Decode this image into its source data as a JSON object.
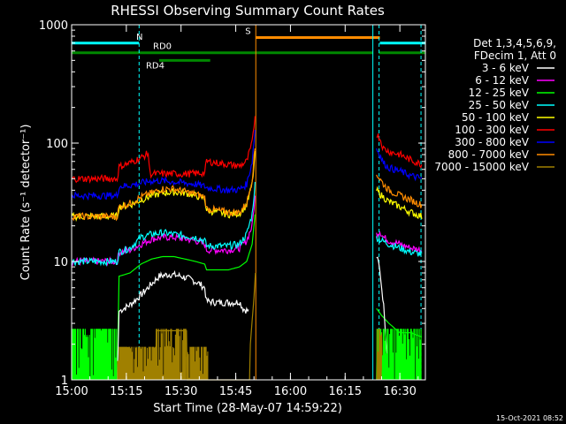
{
  "chart_data": {
    "type": "line",
    "title": "RHESSI Observing Summary Count Rates",
    "xlabel": "Start Time (28-May-07 14:59:22)",
    "ylabel": "Count Rate (s⁻¹ detector⁻¹)",
    "yscale": "log",
    "ylim": [
      1,
      1000
    ],
    "xlim_minutes": [
      0,
      97
    ],
    "x_ticks": [
      {
        "t": 0,
        "label": "15:00"
      },
      {
        "t": 15,
        "label": "15:15"
      },
      {
        "t": 30,
        "label": "15:30"
      },
      {
        "t": 45,
        "label": "15:45"
      },
      {
        "t": 60,
        "label": "16:00"
      },
      {
        "t": 75,
        "label": "16:15"
      },
      {
        "t": 90,
        "label": "16:30"
      }
    ],
    "y_ticks": [
      {
        "v": 1,
        "label": "1"
      },
      {
        "v": 10,
        "label": "10"
      },
      {
        "v": 100,
        "label": "100"
      },
      {
        "v": 1000,
        "label": "1000"
      }
    ],
    "legend_header": [
      "Det 1,3,4,5,6,9,",
      "FDecim 1, Att 0"
    ],
    "legend_position": "right",
    "timestamp": "15-Oct-2021 08:52",
    "flag_bars": [
      {
        "label": "N",
        "color": "#00ffff",
        "segments": [
          [
            0,
            18.5
          ],
          [
            84.5,
            97
          ]
        ],
        "level": 700
      },
      {
        "label": "S",
        "color": "#ff8c00",
        "segments": [
          [
            50.5,
            84.5
          ]
        ],
        "level": 780
      },
      {
        "label": "RD0",
        "color": "#008800",
        "segments": [
          [
            0,
            51
          ],
          [
            51,
            82.7
          ],
          [
            84.2,
            97
          ]
        ],
        "level": 580
      },
      {
        "label": "RD4",
        "color": "#008800",
        "segments": [
          [
            24,
            38
          ]
        ],
        "level": 500
      }
    ],
    "vlines": [
      {
        "t": 0,
        "color": "#00ffff",
        "style": "solid"
      },
      {
        "t": 18.5,
        "color": "#00ffff",
        "style": "dashed"
      },
      {
        "t": 82.6,
        "color": "#00ffff",
        "style": "solid"
      },
      {
        "t": 84.3,
        "color": "#00ffff",
        "style": "dashed"
      },
      {
        "t": 95.8,
        "color": "#00ffff",
        "style": "dashed"
      },
      {
        "t": 50.5,
        "color": "#ff8c00",
        "style": "solid"
      }
    ],
    "series": [
      {
        "name": "3 - 6 keV",
        "color": "#ffffff",
        "points": [
          [
            12.5,
            1.0
          ],
          [
            13,
            3.8
          ],
          [
            16,
            4.3
          ],
          [
            19,
            5.2
          ],
          [
            22,
            6.5
          ],
          [
            24,
            7.5
          ],
          [
            27,
            7.8
          ],
          [
            30,
            7.5
          ],
          [
            33,
            7.0
          ],
          [
            35,
            6.5
          ],
          [
            36.5,
            6.0
          ],
          [
            37,
            4.6
          ],
          [
            40,
            4.5
          ],
          [
            43,
            4.5
          ],
          [
            45,
            4.5
          ],
          [
            46,
            4.6
          ],
          [
            47,
            4.0
          ],
          [
            48.5,
            3.8
          ]
        ],
        "seg2": [
          [
            83.6,
            11
          ],
          [
            84.2,
            9.5
          ],
          [
            84.8,
            7
          ],
          [
            85.3,
            5
          ],
          [
            85.8,
            3.5
          ],
          [
            86.3,
            2
          ],
          [
            87,
            1.0
          ]
        ]
      },
      {
        "name": "6 - 12 keV",
        "color": "#ff00ff",
        "points": [
          [
            0,
            10
          ],
          [
            4,
            10
          ],
          [
            8,
            10
          ],
          [
            12.5,
            10
          ],
          [
            13,
            12
          ],
          [
            16,
            12.5
          ],
          [
            19,
            14
          ],
          [
            22,
            15.5
          ],
          [
            25,
            16
          ],
          [
            28,
            16
          ],
          [
            31,
            15.5
          ],
          [
            34,
            15
          ],
          [
            36.5,
            14
          ],
          [
            37,
            12.5
          ],
          [
            40,
            12.5
          ],
          [
            43,
            12.5
          ],
          [
            46,
            13
          ],
          [
            48,
            15
          ],
          [
            49.5,
            20
          ],
          [
            50.3,
            35
          ]
        ],
        "seg2": [
          [
            83.6,
            17
          ],
          [
            84.5,
            18
          ],
          [
            85.5,
            16
          ],
          [
            87,
            15
          ],
          [
            90,
            14
          ],
          [
            93,
            13
          ],
          [
            96,
            12.5
          ]
        ]
      },
      {
        "name": "12 - 25 keV",
        "color": "#00ff00",
        "points": [
          [
            12.5,
            1.0
          ],
          [
            13,
            7.5
          ],
          [
            16,
            8.0
          ],
          [
            19,
            9.5
          ],
          [
            22,
            10.5
          ],
          [
            25,
            11
          ],
          [
            28,
            11
          ],
          [
            31,
            10.5
          ],
          [
            34,
            10
          ],
          [
            36.5,
            9.5
          ],
          [
            37,
            8.5
          ],
          [
            40,
            8.5
          ],
          [
            43,
            8.5
          ],
          [
            46,
            9
          ],
          [
            48,
            10
          ],
          [
            49.5,
            14
          ],
          [
            50.3,
            25
          ]
        ],
        "seg2": [
          [
            83.6,
            4.0
          ],
          [
            85,
            3.5
          ],
          [
            87,
            3.0
          ],
          [
            90,
            2.5
          ],
          [
            93,
            2.5
          ],
          [
            96,
            2.3
          ]
        ]
      },
      {
        "name": "25 - 50 keV",
        "color": "#00ffff",
        "points": [
          [
            0,
            10
          ],
          [
            3,
            10
          ],
          [
            6,
            10
          ],
          [
            9,
            10
          ],
          [
            12.5,
            10
          ],
          [
            13,
            12
          ],
          [
            16,
            13
          ],
          [
            19,
            16
          ],
          [
            22,
            17
          ],
          [
            25,
            17.5
          ],
          [
            28,
            17
          ],
          [
            31,
            16.5
          ],
          [
            34,
            16
          ],
          [
            36.5,
            15
          ],
          [
            37,
            13.5
          ],
          [
            40,
            13.5
          ],
          [
            43,
            13.5
          ],
          [
            46,
            14
          ],
          [
            48,
            17
          ],
          [
            49.5,
            25
          ],
          [
            50.3,
            45
          ]
        ],
        "seg2": [
          [
            83.6,
            16
          ],
          [
            85,
            15
          ],
          [
            87,
            14
          ],
          [
            90,
            13
          ],
          [
            93,
            12
          ],
          [
            96,
            11.5
          ]
        ]
      },
      {
        "name": "50 - 100 keV",
        "color": "#ffff00",
        "points": [
          [
            0,
            24
          ],
          [
            4,
            24
          ],
          [
            8,
            24
          ],
          [
            12.5,
            24
          ],
          [
            13,
            29
          ],
          [
            16,
            30
          ],
          [
            19,
            33
          ],
          [
            22,
            36
          ],
          [
            25,
            38
          ],
          [
            28,
            38.5
          ],
          [
            31,
            38
          ],
          [
            34,
            36
          ],
          [
            36.5,
            34
          ],
          [
            37,
            27
          ],
          [
            40,
            26
          ],
          [
            43,
            25
          ],
          [
            46,
            25.5
          ],
          [
            48,
            30
          ],
          [
            49.5,
            45
          ],
          [
            50.3,
            80
          ]
        ],
        "seg2": [
          [
            83.6,
            40
          ],
          [
            85,
            36
          ],
          [
            87,
            32
          ],
          [
            90,
            29
          ],
          [
            93,
            26
          ],
          [
            96,
            24
          ]
        ]
      },
      {
        "name": "100 - 300 keV",
        "color": "#ff0000",
        "points": [
          [
            0,
            50
          ],
          [
            4,
            50
          ],
          [
            8,
            50
          ],
          [
            12.5,
            50
          ],
          [
            13,
            63
          ],
          [
            16,
            68
          ],
          [
            19,
            75
          ],
          [
            21,
            82
          ],
          [
            21.5,
            55
          ],
          [
            24,
            55
          ],
          [
            28,
            55
          ],
          [
            32,
            55
          ],
          [
            36.5,
            56
          ],
          [
            37,
            70
          ],
          [
            40,
            68
          ],
          [
            43,
            66
          ],
          [
            46,
            64
          ],
          [
            48,
            70
          ],
          [
            49.5,
            100
          ],
          [
            50.3,
            170
          ]
        ],
        "seg2": [
          [
            83.6,
            120
          ],
          [
            84.5,
            110
          ],
          [
            85.5,
            90
          ],
          [
            87,
            85
          ],
          [
            90,
            80
          ],
          [
            93,
            72
          ],
          [
            96,
            66
          ]
        ]
      },
      {
        "name": "300 - 800 keV",
        "color": "#0000ff",
        "points": [
          [
            0,
            36
          ],
          [
            4,
            36
          ],
          [
            8,
            36
          ],
          [
            12.5,
            36
          ],
          [
            13,
            43
          ],
          [
            16,
            44
          ],
          [
            19,
            46
          ],
          [
            22,
            48
          ],
          [
            25,
            48
          ],
          [
            28,
            47
          ],
          [
            31,
            46
          ],
          [
            34,
            45
          ],
          [
            36.5,
            43
          ],
          [
            37,
            42
          ],
          [
            40,
            41
          ],
          [
            43,
            40
          ],
          [
            46,
            40.5
          ],
          [
            48,
            45
          ],
          [
            49.5,
            70
          ],
          [
            50.3,
            130
          ]
        ],
        "seg2": [
          [
            83.6,
            90
          ],
          [
            84.5,
            80
          ],
          [
            85.5,
            68
          ],
          [
            87,
            62
          ],
          [
            90,
            58
          ],
          [
            93,
            53
          ],
          [
            96,
            50
          ]
        ]
      },
      {
        "name": "800 - 7000 keV",
        "color": "#ff8c00",
        "points": [
          [
            0,
            24
          ],
          [
            4,
            24
          ],
          [
            8,
            24
          ],
          [
            12.5,
            24
          ],
          [
            13,
            29
          ],
          [
            16,
            31
          ],
          [
            19,
            35
          ],
          [
            22,
            38
          ],
          [
            25,
            41
          ],
          [
            28,
            41
          ],
          [
            31,
            39
          ],
          [
            34,
            37
          ],
          [
            36.5,
            35
          ],
          [
            37,
            28
          ],
          [
            40,
            27
          ],
          [
            43,
            26
          ],
          [
            46,
            26
          ],
          [
            48,
            31
          ],
          [
            49.5,
            50
          ],
          [
            50.3,
            90
          ]
        ],
        "seg2": [
          [
            83.6,
            55
          ],
          [
            84.5,
            50
          ],
          [
            85.5,
            45
          ],
          [
            87,
            40
          ],
          [
            90,
            36
          ],
          [
            93,
            33
          ],
          [
            96,
            30
          ]
        ]
      },
      {
        "name": "7000 - 15000 keV",
        "color": "#a08000",
        "points": [
          [
            23,
            1.0
          ],
          [
            23.2,
            2.6
          ],
          [
            28,
            2.6
          ],
          [
            31.5,
            2.6
          ],
          [
            31.7,
            1.0
          ],
          [
            48.8,
            1.0
          ],
          [
            49,
            2.0
          ],
          [
            50,
            5
          ],
          [
            50.4,
            8
          ]
        ],
        "seg2": [
          [
            83.6,
            1.0
          ],
          [
            83.8,
            2.5
          ],
          [
            85,
            2.5
          ],
          [
            85.2,
            1.0
          ]
        ]
      }
    ]
  }
}
